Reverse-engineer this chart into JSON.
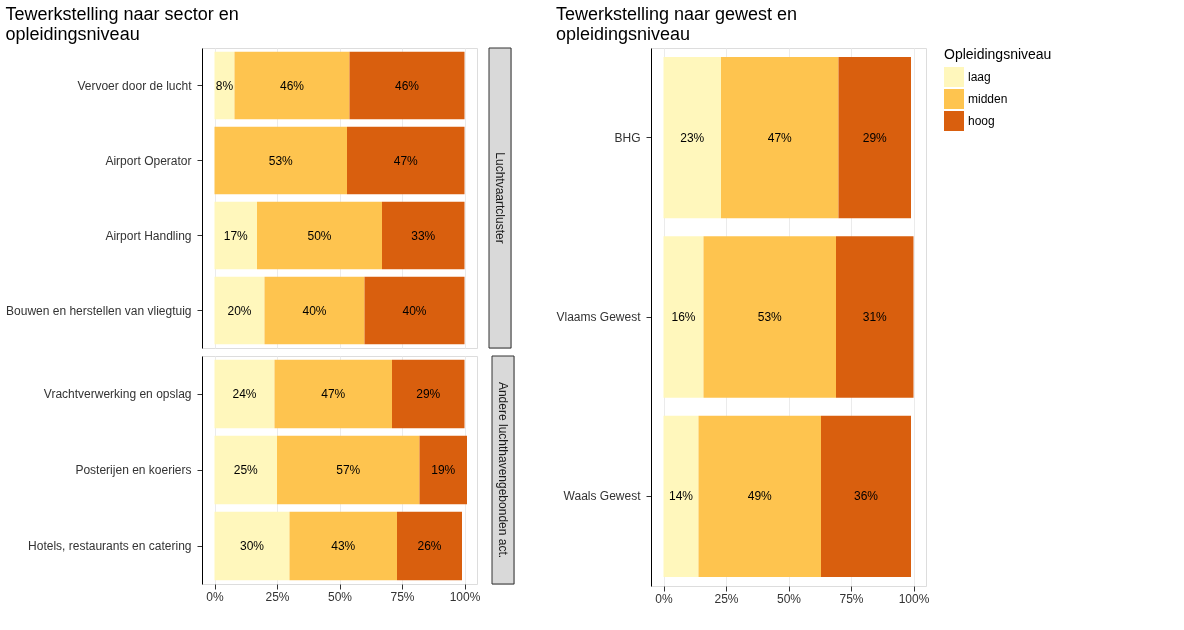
{
  "chart_data": [
    {
      "type": "bar",
      "orientation": "horizontal",
      "stacked": true,
      "title": "Tewerkstelling naar sector en opleidingsniveau",
      "y2label": "Luchtvaartcluster",
      "categories": [
        "Vervoer door de lucht",
        "Airport Operator",
        "Airport Handling",
        "Bouwen en herstellen van vliegtuig"
      ],
      "series": [
        {
          "color": "#fff7bc",
          "values": [
            8,
            null,
            17,
            20
          ],
          "value_labels": [
            "8%",
            null,
            "17%",
            "20%"
          ]
        },
        {
          "color": "#fec44f",
          "values": [
            46,
            53,
            50,
            40
          ],
          "value_labels": [
            "46%",
            "53%",
            "50%",
            "40%"
          ]
        },
        {
          "color": "#d95f0e",
          "values": [
            46,
            47,
            33,
            40
          ],
          "value_labels": [
            "46%",
            "47%",
            "33%",
            "40%"
          ]
        }
      ],
      "xlim": [
        -5,
        105
      ],
      "xticks": [
        {
          "value": 0,
          "label": null
        },
        {
          "value": 25,
          "label": null
        },
        {
          "value": 50,
          "label": null
        },
        {
          "value": 75,
          "label": null
        },
        {
          "value": 100,
          "label": null
        }
      ],
      "grid": "x",
      "tick_labels": "y"
    },
    {
      "type": "bar",
      "orientation": "horizontal",
      "stacked": true,
      "y2label": "Andere luchthavengebonden act.",
      "categories": [
        "Vrachtverwerking en opslag",
        "Posterijen en koeriers",
        "Hotels, restaurants en catering"
      ],
      "series": [
        {
          "color": "#fff7bc",
          "values": [
            24,
            25,
            30
          ],
          "value_labels": [
            "24%",
            "25%",
            "30%"
          ]
        },
        {
          "color": "#fec44f",
          "values": [
            47,
            57,
            43
          ],
          "value_labels": [
            "47%",
            "57%",
            "43%"
          ]
        },
        {
          "color": "#d95f0e",
          "values": [
            29,
            19,
            26
          ],
          "value_labels": [
            "29%",
            "19%",
            "26%"
          ]
        }
      ],
      "xlim": [
        -5,
        105
      ],
      "xticks": [
        {
          "value": 0,
          "label": "0%"
        },
        {
          "value": 25,
          "label": "25%"
        },
        {
          "value": 50,
          "label": "50%"
        },
        {
          "value": 75,
          "label": "75%"
        },
        {
          "value": 100,
          "label": "100%"
        }
      ],
      "grid": "x"
    },
    {
      "type": "bar",
      "orientation": "horizontal",
      "stacked": true,
      "title": "Tewerkstelling naar gewest en opleidingsniveau",
      "legend_title": "Opleidingsniveau",
      "categories": [
        "BHG",
        "Vlaams Gewest",
        "Waals Gewest"
      ],
      "series": [
        {
          "name": "laag",
          "color": "#fff7bc",
          "values": [
            23,
            16,
            14
          ],
          "value_labels": [
            "23%",
            "16%",
            "14%"
          ]
        },
        {
          "name": "midden",
          "color": "#fec44f",
          "values": [
            47,
            53,
            49
          ],
          "value_labels": [
            "47%",
            "53%",
            "49%"
          ]
        },
        {
          "name": "hoog",
          "color": "#d95f0e",
          "values": [
            29,
            31,
            36
          ],
          "value_labels": [
            "29%",
            "31%",
            "36%"
          ]
        }
      ],
      "xlim": [
        -5,
        105
      ],
      "xticks": [
        {
          "value": 0,
          "label": "0%"
        },
        {
          "value": 25,
          "label": "25%"
        },
        {
          "value": 50,
          "label": "50%"
        },
        {
          "value": 75,
          "label": "75%"
        },
        {
          "value": 100,
          "label": "100%"
        }
      ],
      "grid": "x",
      "legend": "right"
    }
  ]
}
